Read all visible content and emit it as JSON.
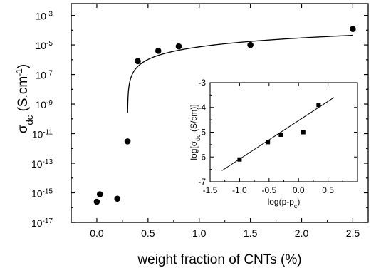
{
  "chart_data": [
    {
      "type": "scatter",
      "xlabel": "weight fraction of CNTs (%)",
      "ylabel": {
        "base": "σ",
        "sub": "dc",
        "unit": " (S.cm",
        "sup": "-1",
        "close": ")"
      },
      "xlim": [
        -0.25,
        2.65
      ],
      "ylim_log10": [
        -17,
        -2.2
      ],
      "yscale": "log",
      "xticks": [
        {
          "v": 0.0,
          "label": "0.0"
        },
        {
          "v": 0.5,
          "label": "0.5"
        },
        {
          "v": 1.0,
          "label": "1.0"
        },
        {
          "v": 1.5,
          "label": "1.5"
        },
        {
          "v": 2.0,
          "label": "2.0"
        },
        {
          "v": 2.5,
          "label": "2.5"
        }
      ],
      "yticks": [
        {
          "exp": -17,
          "label": "-17"
        },
        {
          "exp": -15,
          "label": "-15"
        },
        {
          "exp": -13,
          "label": "-13"
        },
        {
          "exp": -11,
          "label": "-11"
        },
        {
          "exp": -9,
          "label": "-9"
        },
        {
          "exp": -7,
          "label": "-7"
        },
        {
          "exp": -5,
          "label": "-5"
        },
        {
          "exp": -3,
          "label": "-3"
        }
      ],
      "tick_base": "10",
      "points": [
        {
          "x": 0.0,
          "y": 2.5e-16
        },
        {
          "x": 0.03,
          "y": 8e-16
        },
        {
          "x": 0.2,
          "y": 4e-16
        },
        {
          "x": 0.3,
          "y": 3e-12
        },
        {
          "x": 0.4,
          "y": 8e-07
        },
        {
          "x": 0.6,
          "y": 4e-06
        },
        {
          "x": 0.8,
          "y": 8e-06
        },
        {
          "x": 1.5,
          "y": 1e-05
        },
        {
          "x": 2.5,
          "y": 0.00012
        }
      ],
      "fit_curve": {
        "pc": 0.3,
        "sigma0": 1.3e-05,
        "t": 1.57,
        "x_range": [
          0.301,
          2.5
        ]
      },
      "grid": false
    },
    {
      "type": "scatter",
      "xlabel": {
        "base": "log(p-p",
        "sub": "c",
        "close": ")"
      },
      "ylabel": {
        "base": "log[σ",
        "sub": "dc",
        "close": " (S/cm)]"
      },
      "xlim": [
        -1.5,
        1.0
      ],
      "ylim": [
        -7,
        -3
      ],
      "xticks": [
        {
          "v": -1.5,
          "label": "-1.5"
        },
        {
          "v": -1.0,
          "label": "-1.0"
        },
        {
          "v": -0.5,
          "label": "-0.5"
        },
        {
          "v": 0.0,
          "label": "0.0"
        },
        {
          "v": 0.5,
          "label": "0.5"
        }
      ],
      "yticks": [
        {
          "v": -7,
          "label": "-7"
        },
        {
          "v": -6,
          "label": "-6"
        },
        {
          "v": -5,
          "label": "-5"
        },
        {
          "v": -4,
          "label": "-4"
        },
        {
          "v": -3,
          "label": "-3"
        }
      ],
      "points": [
        {
          "x": -1.0,
          "y": -6.1
        },
        {
          "x": -0.52,
          "y": -5.4
        },
        {
          "x": -0.3,
          "y": -5.1
        },
        {
          "x": 0.08,
          "y": -5.0
        },
        {
          "x": 0.34,
          "y": -3.9
        }
      ],
      "fit_line": {
        "x0": -1.3,
        "y0": -6.55,
        "x1": 0.6,
        "y1": -3.6
      },
      "grid": false
    }
  ]
}
